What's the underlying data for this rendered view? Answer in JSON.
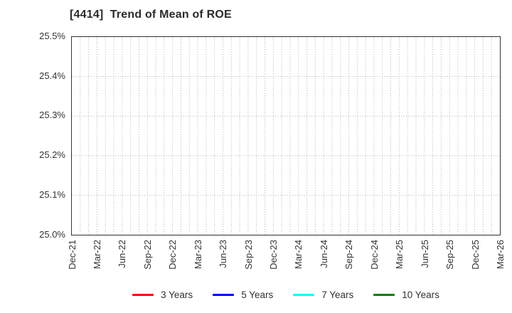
{
  "chart_data": {
    "type": "line",
    "title": "[4414]  Trend of Mean of ROE",
    "xlabel": "",
    "ylabel": "",
    "ylim": [
      25.0,
      25.5
    ],
    "y_ticks": [
      "25.0%",
      "25.1%",
      "25.2%",
      "25.3%",
      "25.4%",
      "25.5%"
    ],
    "x_ticks": [
      "Dec-21",
      "Mar-22",
      "Jun-22",
      "Sep-22",
      "Dec-22",
      "Mar-23",
      "Jun-23",
      "Sep-23",
      "Dec-23",
      "Mar-24",
      "Jun-24",
      "Sep-24",
      "Dec-24",
      "Mar-25",
      "Jun-25",
      "Sep-25",
      "Dec-25",
      "Mar-26"
    ],
    "x_months_total": 51,
    "months_per_tick": 3,
    "grid": true,
    "legend_position": "bottom",
    "series": [
      {
        "name": "3 Years",
        "color": "#ff0000",
        "values": []
      },
      {
        "name": "5 Years",
        "color": "#0000ff",
        "values": []
      },
      {
        "name": "7 Years",
        "color": "#00ffff",
        "values": []
      },
      {
        "name": "10 Years",
        "color": "#008000",
        "values": []
      }
    ]
  },
  "colors": {
    "grid": "#b0b0b0",
    "axis_border": "#333333",
    "tick_text": "#333333",
    "title_text": "#2b2b2b",
    "background": "#ffffff"
  }
}
